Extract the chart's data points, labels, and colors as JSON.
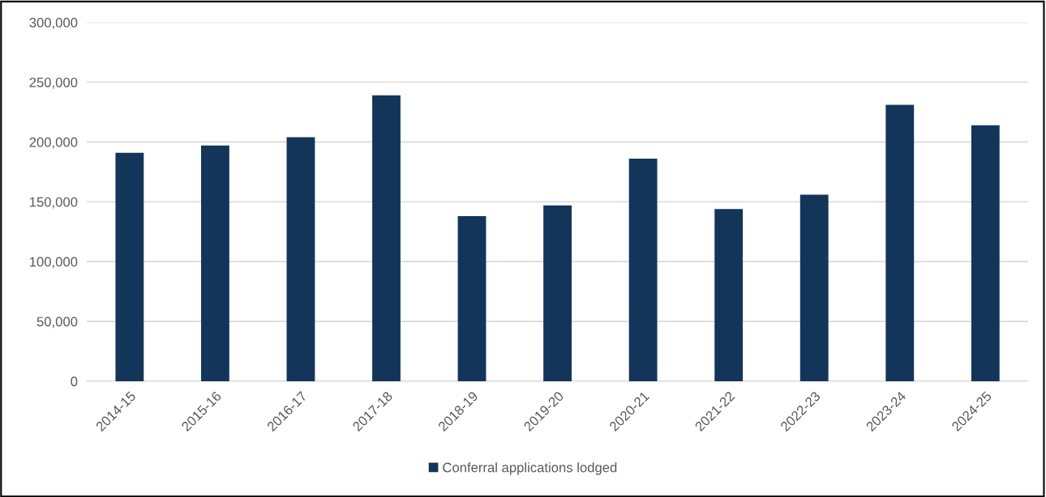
{
  "chart_data": {
    "type": "bar",
    "categories": [
      "2014-15",
      "2015-16",
      "2016-17",
      "2017-18",
      "2018-19",
      "2019-20",
      "2020-21",
      "2021-22",
      "2022-23",
      "2023-24",
      "2024-25"
    ],
    "series": [
      {
        "name": "Conferral applications lodged",
        "color": "#14355a",
        "values": [
          191000,
          197000,
          204000,
          239000,
          138000,
          147000,
          186000,
          144000,
          156000,
          231000,
          214000
        ]
      }
    ],
    "ylim": [
      0,
      300000
    ],
    "yticks": [
      {
        "value": 0,
        "label": "0"
      },
      {
        "value": 50000,
        "label": "50,000"
      },
      {
        "value": 100000,
        "label": "100,000"
      },
      {
        "value": 150000,
        "label": "150,000"
      },
      {
        "value": 200000,
        "label": "200,000"
      },
      {
        "value": 250000,
        "label": "250,000"
      },
      {
        "value": 300000,
        "label": "300,000"
      }
    ],
    "grid": "y",
    "legend": "bottom"
  }
}
